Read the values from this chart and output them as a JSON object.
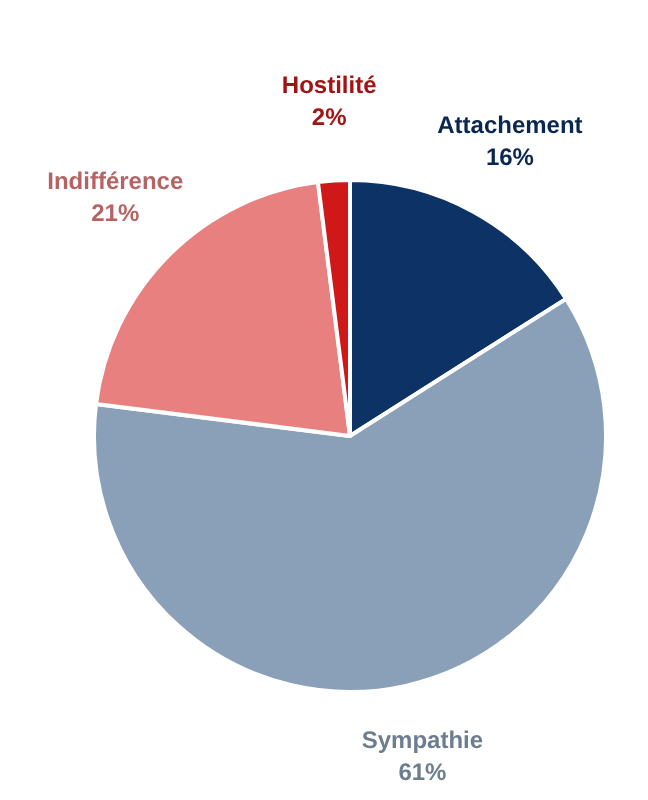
{
  "chart_data": {
    "type": "pie",
    "categories": [
      "Attachement",
      "Sympathie",
      "Indifférence",
      "Hostilité"
    ],
    "values": [
      16,
      61,
      21,
      2
    ],
    "colors": [
      "#0d3366",
      "#8aa0b8",
      "#e88080",
      "#d01818"
    ],
    "value_labels": [
      "16%",
      "61%",
      "21%",
      "2%"
    ]
  }
}
